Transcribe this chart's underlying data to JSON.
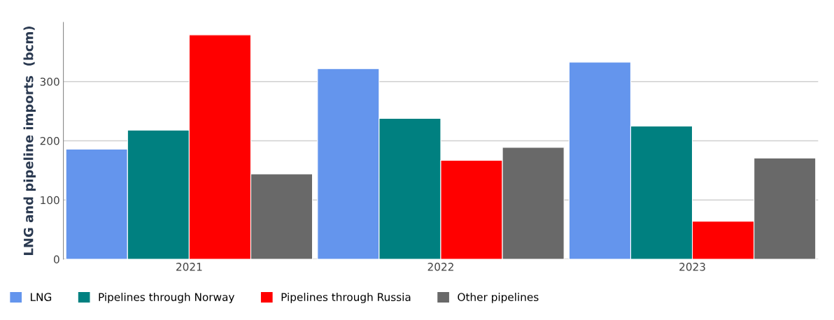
{
  "chart_data": {
    "type": "bar",
    "ylabel": "LNG and pipeline imports  (bcm)",
    "categories": [
      "2021",
      "2022",
      "2023"
    ],
    "series": [
      {
        "name": "LNG",
        "color": "#6495ed",
        "values": [
          186,
          322,
          333
        ]
      },
      {
        "name": "Pipelines through Norway",
        "color": "#008080",
        "values": [
          218,
          238,
          225
        ]
      },
      {
        "name": "Pipelines through Russia",
        "color": "#ff0000",
        "values": [
          379,
          167,
          64
        ]
      },
      {
        "name": "Other pipelines",
        "color": "#696969",
        "values": [
          144,
          189,
          171
        ]
      }
    ],
    "ylim": [
      0,
      400
    ],
    "yticks": [
      0,
      100,
      200,
      300
    ],
    "grid": "y",
    "legend": "bottom"
  }
}
